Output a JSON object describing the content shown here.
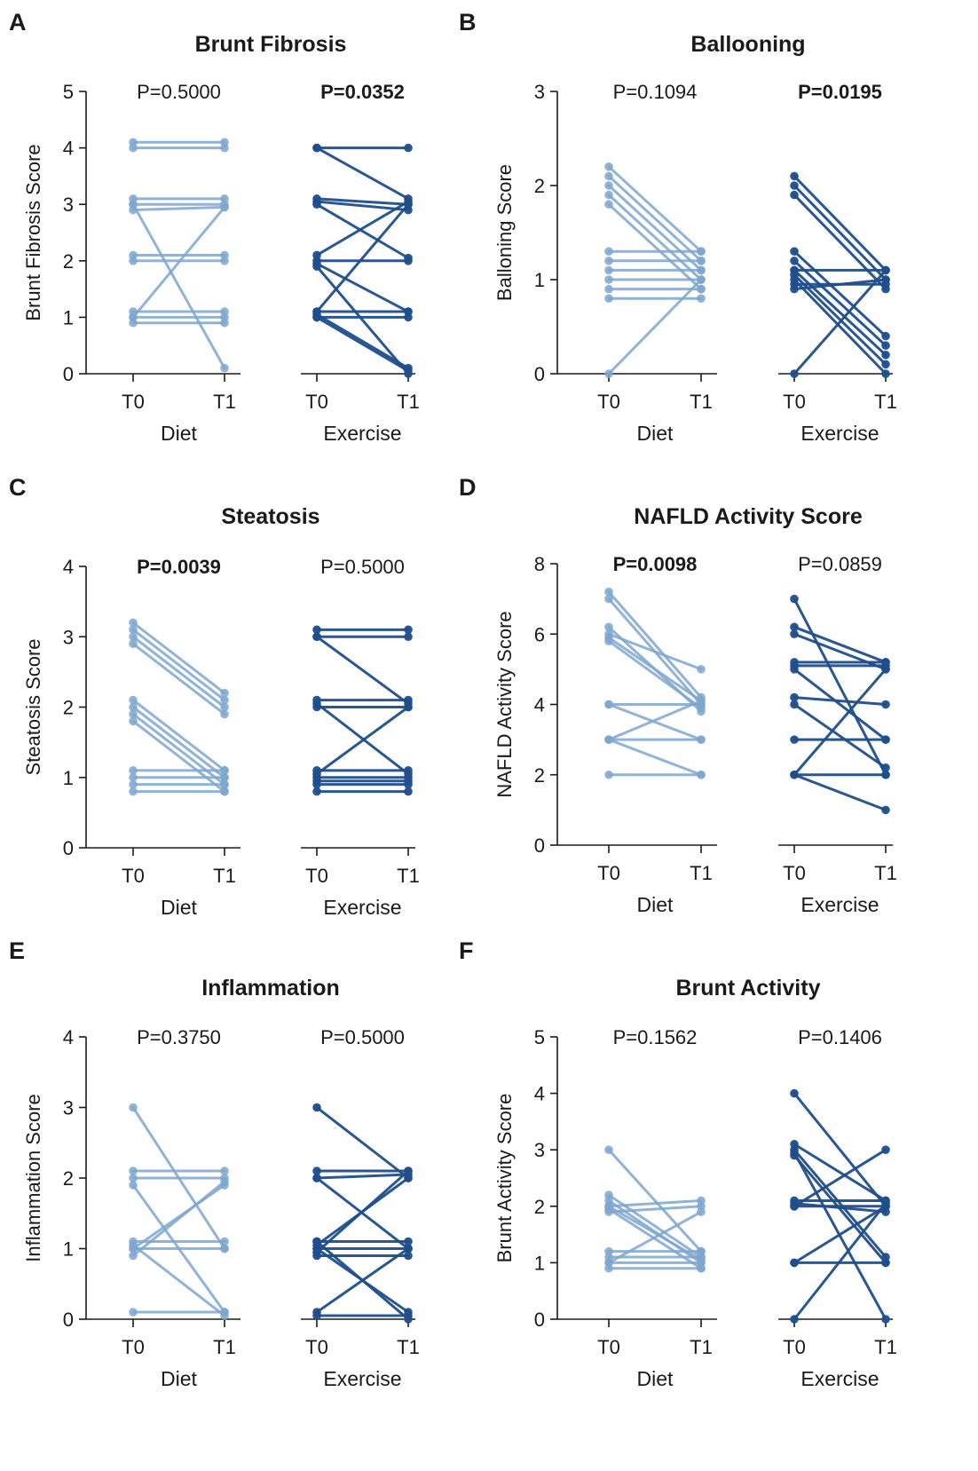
{
  "colors": {
    "diet": "#7ea6cf",
    "exercise": "#1f4e8c",
    "axis": "#1a1a1a"
  },
  "chart_data": [
    {
      "type": "line",
      "panel": "A",
      "title": "Brunt Fibrosis",
      "ylabel": "Brunt Fibrosis Score",
      "ylim": [
        0,
        5
      ],
      "yticks": [
        "0",
        "1",
        "2",
        "3",
        "4",
        "5"
      ],
      "timepoint_labels": [
        "T0",
        "T1"
      ],
      "groups": [
        {
          "name": "Diet",
          "p_value": "P=0.5000",
          "p_bold": false,
          "pairs": [
            [
              4.1,
              4.1
            ],
            [
              4.0,
              4.0
            ],
            [
              3.1,
              3.1
            ],
            [
              3.0,
              3.0
            ],
            [
              2.9,
              2.95
            ],
            [
              3.0,
              0.1
            ],
            [
              2.1,
              2.1
            ],
            [
              2.0,
              2.0
            ],
            [
              1.1,
              1.1
            ],
            [
              1.0,
              1.0
            ],
            [
              0.9,
              0.9
            ],
            [
              1.0,
              2.95
            ]
          ]
        },
        {
          "name": "Exercise",
          "p_value": "P=0.0352",
          "p_bold": true,
          "pairs": [
            [
              4.0,
              4.0
            ],
            [
              4.0,
              3.1
            ],
            [
              3.1,
              3.0
            ],
            [
              3.05,
              2.9
            ],
            [
              3.0,
              2.05
            ],
            [
              2.1,
              3.05
            ],
            [
              2.0,
              2.0
            ],
            [
              1.95,
              1.1
            ],
            [
              1.1,
              3.0
            ],
            [
              1.1,
              1.1
            ],
            [
              1.05,
              0.1
            ],
            [
              1.0,
              0.05
            ],
            [
              1.0,
              1.0
            ],
            [
              1.9,
              0.0
            ]
          ]
        }
      ]
    },
    {
      "type": "line",
      "panel": "B",
      "title": "Ballooning",
      "ylabel": "Balloning Score",
      "ylim": [
        0,
        3
      ],
      "yticks": [
        "0",
        "1",
        "2",
        "3"
      ],
      "timepoint_labels": [
        "T0",
        "T1"
      ],
      "groups": [
        {
          "name": "Diet",
          "p_value": "P=0.1094",
          "p_bold": false,
          "pairs": [
            [
              2.2,
              1.3
            ],
            [
              2.1,
              1.2
            ],
            [
              2.0,
              1.1
            ],
            [
              1.9,
              1.0
            ],
            [
              1.8,
              0.9
            ],
            [
              1.3,
              1.3
            ],
            [
              1.2,
              1.2
            ],
            [
              1.1,
              1.1
            ],
            [
              1.0,
              1.0
            ],
            [
              0.9,
              0.9
            ],
            [
              0.8,
              0.8
            ],
            [
              0.0,
              1.0
            ]
          ]
        },
        {
          "name": "Exercise",
          "p_value": "P=0.0195",
          "p_bold": true,
          "pairs": [
            [
              2.1,
              1.1
            ],
            [
              2.0,
              1.0
            ],
            [
              1.9,
              0.9
            ],
            [
              1.3,
              0.4
            ],
            [
              1.2,
              0.3
            ],
            [
              1.1,
              0.2
            ],
            [
              1.05,
              0.1
            ],
            [
              1.0,
              0.0
            ],
            [
              0.95,
              0.95
            ],
            [
              0.9,
              1.0
            ],
            [
              1.1,
              1.1
            ],
            [
              0.0,
              1.1
            ]
          ]
        }
      ]
    },
    {
      "type": "line",
      "panel": "C",
      "title": "Steatosis",
      "ylabel": "Steatosis Score",
      "ylim": [
        0,
        4
      ],
      "yticks": [
        "0",
        "1",
        "2",
        "3",
        "4"
      ],
      "timepoint_labels": [
        "T0",
        "T1"
      ],
      "groups": [
        {
          "name": "Diet",
          "p_value": "P=0.0039",
          "p_bold": true,
          "pairs": [
            [
              3.2,
              2.2
            ],
            [
              3.1,
              2.1
            ],
            [
              3.0,
              2.0
            ],
            [
              2.9,
              1.9
            ],
            [
              2.1,
              1.1
            ],
            [
              2.0,
              1.0
            ],
            [
              1.9,
              0.9
            ],
            [
              1.8,
              0.8
            ],
            [
              1.1,
              1.1
            ],
            [
              1.0,
              1.0
            ],
            [
              0.9,
              0.9
            ],
            [
              0.8,
              0.8
            ]
          ]
        },
        {
          "name": "Exercise",
          "p_value": "P=0.5000",
          "p_bold": false,
          "pairs": [
            [
              3.1,
              3.1
            ],
            [
              3.0,
              3.0
            ],
            [
              3.0,
              2.05
            ],
            [
              2.1,
              2.1
            ],
            [
              2.0,
              2.0
            ],
            [
              2.05,
              1.05
            ],
            [
              1.1,
              1.1
            ],
            [
              1.0,
              1.0
            ],
            [
              0.9,
              0.9
            ],
            [
              0.8,
              0.8
            ],
            [
              1.05,
              2.0
            ],
            [
              0.95,
              0.95
            ]
          ]
        }
      ]
    },
    {
      "type": "line",
      "panel": "D",
      "title": "NAFLD Activity Score",
      "ylabel": "NAFLD Activity Score",
      "ylim": [
        0,
        8
      ],
      "yticks": [
        "0",
        "2",
        "4",
        "6",
        "8"
      ],
      "timepoint_labels": [
        "T0",
        "T1"
      ],
      "groups": [
        {
          "name": "Diet",
          "p_value": "P=0.0098",
          "p_bold": true,
          "pairs": [
            [
              7.2,
              4.2
            ],
            [
              7.0,
              4.0
            ],
            [
              6.2,
              3.8
            ],
            [
              6.0,
              5.0
            ],
            [
              5.9,
              4.1
            ],
            [
              5.8,
              3.9
            ],
            [
              4.0,
              4.0
            ],
            [
              4.0,
              3.0
            ],
            [
              3.0,
              3.0
            ],
            [
              3.0,
              2.0
            ],
            [
              3.0,
              4.1
            ],
            [
              2.0,
              2.0
            ]
          ]
        },
        {
          "name": "Exercise",
          "p_value": "P=0.0859",
          "p_bold": false,
          "pairs": [
            [
              7.0,
              2.0
            ],
            [
              6.2,
              5.2
            ],
            [
              6.0,
              5.0
            ],
            [
              5.2,
              5.2
            ],
            [
              5.1,
              5.1
            ],
            [
              5.0,
              3.0
            ],
            [
              4.2,
              4.0
            ],
            [
              4.0,
              2.2
            ],
            [
              3.0,
              3.0
            ],
            [
              2.0,
              5.0
            ],
            [
              2.0,
              2.0
            ],
            [
              2.0,
              1.0
            ]
          ]
        }
      ]
    },
    {
      "type": "line",
      "panel": "E",
      "title": "Inflammation",
      "ylabel": "Inflammation Score",
      "ylim": [
        0,
        4
      ],
      "yticks": [
        "0",
        "1",
        "2",
        "3",
        "4"
      ],
      "timepoint_labels": [
        "T0",
        "T1"
      ],
      "groups": [
        {
          "name": "Diet",
          "p_value": "P=0.3750",
          "p_bold": false,
          "pairs": [
            [
              3.0,
              1.0
            ],
            [
              2.1,
              2.1
            ],
            [
              2.0,
              2.0
            ],
            [
              1.9,
              0.1
            ],
            [
              1.1,
              1.1
            ],
            [
              1.0,
              1.0
            ],
            [
              1.0,
              1.9
            ],
            [
              0.9,
              1.95
            ],
            [
              0.1,
              0.1
            ],
            [
              1.05,
              0.05
            ]
          ]
        },
        {
          "name": "Exercise",
          "p_value": "P=0.5000",
          "p_bold": false,
          "pairs": [
            [
              3.0,
              2.0
            ],
            [
              2.1,
              2.1
            ],
            [
              2.0,
              1.0
            ],
            [
              2.0,
              2.05
            ],
            [
              1.1,
              1.1
            ],
            [
              1.05,
              2.0
            ],
            [
              1.0,
              1.0
            ],
            [
              1.0,
              0.1
            ],
            [
              0.9,
              0.9
            ],
            [
              0.1,
              1.0
            ],
            [
              0.05,
              0.05
            ],
            [
              0.95,
              2.1
            ],
            [
              1.1,
              0.0
            ]
          ]
        }
      ]
    },
    {
      "type": "line",
      "panel": "F",
      "title": "Brunt Activity",
      "ylabel": "Brunt Activity Score",
      "ylim": [
        0,
        5
      ],
      "yticks": [
        "0",
        "1",
        "2",
        "3",
        "4",
        "5"
      ],
      "timepoint_labels": [
        "T0",
        "T1"
      ],
      "groups": [
        {
          "name": "Diet",
          "p_value": "P=0.1562",
          "p_bold": false,
          "pairs": [
            [
              3.0,
              1.2
            ],
            [
              2.2,
              1.1
            ],
            [
              2.1,
              1.0
            ],
            [
              2.0,
              2.1
            ],
            [
              1.95,
              0.9
            ],
            [
              1.9,
              2.0
            ],
            [
              1.2,
              1.2
            ],
            [
              1.1,
              1.1
            ],
            [
              1.0,
              1.9
            ],
            [
              1.0,
              1.0
            ],
            [
              0.9,
              0.9
            ],
            [
              2.0,
              1.05
            ]
          ]
        },
        {
          "name": "Exercise",
          "p_value": "P=0.1406",
          "p_bold": false,
          "pairs": [
            [
              4.0,
              2.0
            ],
            [
              3.1,
              2.1
            ],
            [
              3.0,
              1.1
            ],
            [
              2.95,
              0.0
            ],
            [
              2.9,
              1.0
            ],
            [
              2.1,
              2.1
            ],
            [
              2.05,
              1.9
            ],
            [
              2.0,
              2.0
            ],
            [
              2.0,
              3.0
            ],
            [
              1.0,
              2.0
            ],
            [
              1.0,
              1.0
            ],
            [
              0.0,
              2.05
            ]
          ]
        }
      ]
    }
  ]
}
